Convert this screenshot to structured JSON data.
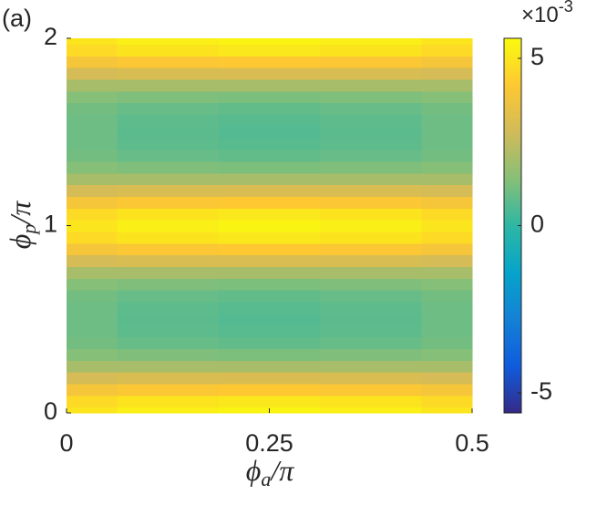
{
  "chart_data": {
    "type": "heatmap",
    "panel_label": "(a)",
    "xlabel": {
      "main": "ϕ",
      "sub": "a",
      "tail": "/π"
    },
    "ylabel": {
      "main": "ϕ",
      "sub": "p",
      "tail": "/π"
    },
    "x": [
      0,
      0.125,
      0.25,
      0.375,
      0.5
    ],
    "y": [
      0,
      0.0625,
      0.125,
      0.1875,
      0.25,
      0.3125,
      0.375,
      0.4375,
      0.5,
      0.5625,
      0.625,
      0.6875,
      0.75,
      0.8125,
      0.875,
      0.9375,
      1,
      1.0625,
      1.125,
      1.1875,
      1.25,
      1.3125,
      1.375,
      1.4375,
      1.5,
      1.5625,
      1.625,
      1.6875,
      1.75,
      1.8125,
      1.875,
      1.9375,
      2
    ],
    "values": [
      [
        5.0,
        5.28,
        5.4,
        5.28,
        5.0
      ],
      [
        4.7,
        4.96,
        5.07,
        4.96,
        4.7
      ],
      [
        3.91,
        4.11,
        4.19,
        4.11,
        3.91
      ],
      [
        2.91,
        3.02,
        3.06,
        3.02,
        2.91
      ],
      [
        2.0,
        2.0,
        2.0,
        2.0,
        2.0
      ],
      [
        1.38,
        1.27,
        1.23,
        1.27,
        1.38
      ],
      [
        1.09,
        0.89,
        0.81,
        0.89,
        1.09
      ],
      [
        1.01,
        0.75,
        0.64,
        0.75,
        1.01
      ],
      [
        1.0,
        0.72,
        0.6,
        0.72,
        1.0
      ],
      [
        1.01,
        0.75,
        0.64,
        0.75,
        1.01
      ],
      [
        1.09,
        0.89,
        0.81,
        0.89,
        1.09
      ],
      [
        1.38,
        1.27,
        1.23,
        1.27,
        1.38
      ],
      [
        2.0,
        2.0,
        2.0,
        2.0,
        2.0
      ],
      [
        2.91,
        3.02,
        3.06,
        3.02,
        2.91
      ],
      [
        3.91,
        4.11,
        4.19,
        4.11,
        3.91
      ],
      [
        4.7,
        4.96,
        5.07,
        4.96,
        4.7
      ],
      [
        5.0,
        5.28,
        5.4,
        5.28,
        5.0
      ],
      [
        4.7,
        4.96,
        5.07,
        4.96,
        4.7
      ],
      [
        3.91,
        4.11,
        4.19,
        4.11,
        3.91
      ],
      [
        2.91,
        3.02,
        3.06,
        3.02,
        2.91
      ],
      [
        2.0,
        2.0,
        2.0,
        2.0,
        2.0
      ],
      [
        1.38,
        1.27,
        1.23,
        1.27,
        1.38
      ],
      [
        1.09,
        0.89,
        0.81,
        0.89,
        1.09
      ],
      [
        1.01,
        0.75,
        0.64,
        0.75,
        1.01
      ],
      [
        1.0,
        0.72,
        0.6,
        0.72,
        1.0
      ],
      [
        1.01,
        0.75,
        0.64,
        0.75,
        1.01
      ],
      [
        1.09,
        0.89,
        0.81,
        0.89,
        1.09
      ],
      [
        1.38,
        1.27,
        1.23,
        1.27,
        1.38
      ],
      [
        2.0,
        2.0,
        2.0,
        2.0,
        2.0
      ],
      [
        2.91,
        3.02,
        3.06,
        3.02,
        2.91
      ],
      [
        3.91,
        4.11,
        4.19,
        4.11,
        3.91
      ],
      [
        4.7,
        4.96,
        5.07,
        4.96,
        4.7
      ],
      [
        5.0,
        5.28,
        5.4,
        5.28,
        5.0
      ]
    ],
    "xlim": [
      0,
      0.5
    ],
    "xticks": [
      0,
      0.25,
      0.5
    ],
    "ylim": [
      0,
      2
    ],
    "yticks": [
      0,
      1,
      2
    ],
    "clim": [
      -5.6,
      5.6
    ],
    "cticks": [
      -5,
      0,
      5
    ],
    "colorbar_multiplier": {
      "base": "×10",
      "exponent": "-3"
    },
    "colormap": [
      "#352a87",
      "#0f5cdd",
      "#1481d6",
      "#06a4ca",
      "#2eb7a4",
      "#87bf77",
      "#d1bb59",
      "#fec832",
      "#f9fb0e"
    ]
  }
}
